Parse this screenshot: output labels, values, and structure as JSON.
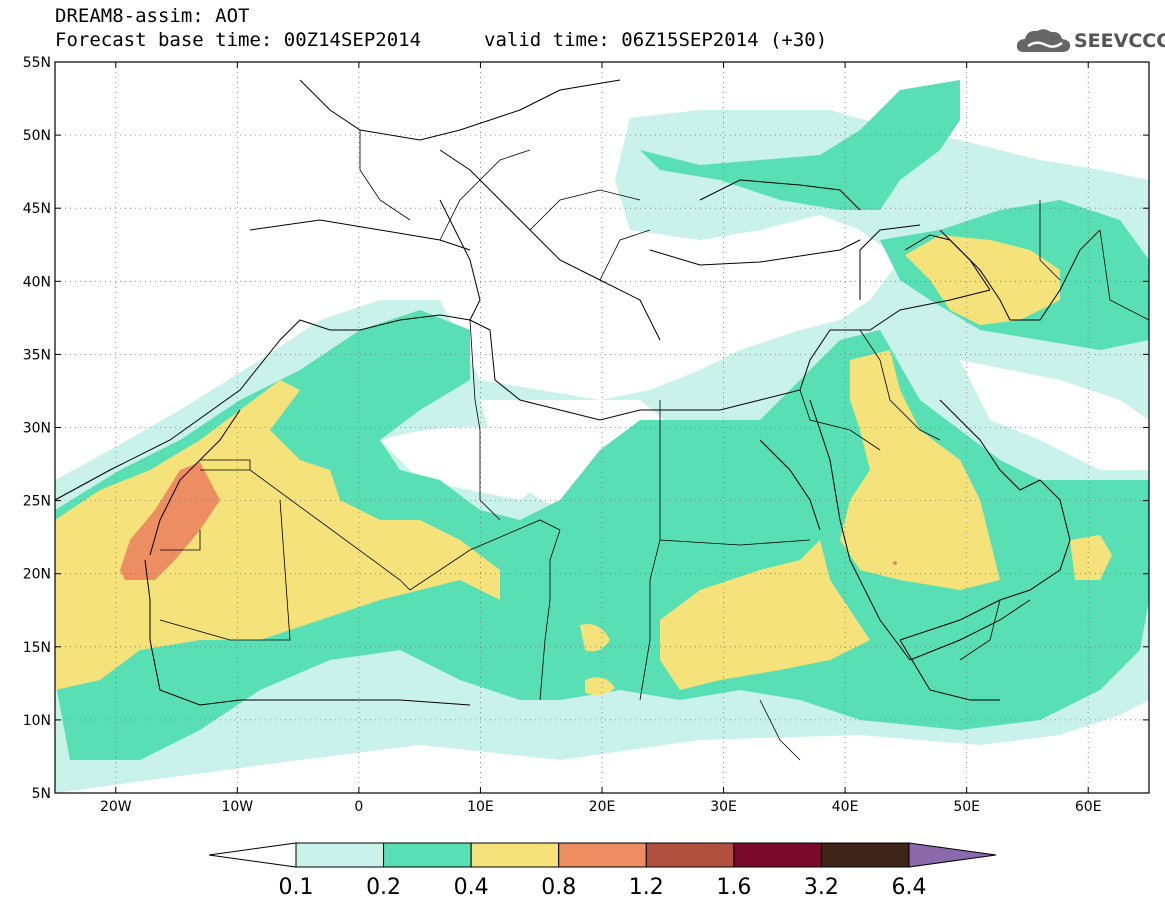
{
  "title": {
    "line1": "DREAM8-assim: AOT",
    "line2": "Forecast base time: 00Z14SEP2014",
    "valid": "valid time: 06Z15SEP2014 (+30)"
  },
  "logo": {
    "text": "SEEVCCC",
    "icon": "cloud-icon"
  },
  "map": {
    "lon_range": [
      -25,
      65
    ],
    "lat_range": [
      5,
      55
    ],
    "lon_ticks": [
      {
        "value": -20,
        "label": "20W"
      },
      {
        "value": -10,
        "label": "10W"
      },
      {
        "value": 0,
        "label": "0"
      },
      {
        "value": 10,
        "label": "10E"
      },
      {
        "value": 20,
        "label": "20E"
      },
      {
        "value": 30,
        "label": "30E"
      },
      {
        "value": 40,
        "label": "40E"
      },
      {
        "value": 50,
        "label": "50E"
      },
      {
        "value": 60,
        "label": "60E"
      }
    ],
    "lat_ticks": [
      {
        "value": 55,
        "label": "55N"
      },
      {
        "value": 50,
        "label": "50N"
      },
      {
        "value": 45,
        "label": "45N"
      },
      {
        "value": 40,
        "label": "40N"
      },
      {
        "value": 35,
        "label": "35N"
      },
      {
        "value": 30,
        "label": "30N"
      },
      {
        "value": 25,
        "label": "25N"
      },
      {
        "value": 20,
        "label": "20N"
      },
      {
        "value": 15,
        "label": "15N"
      },
      {
        "value": 10,
        "label": "10N"
      },
      {
        "value": 5,
        "label": "5N"
      }
    ],
    "grid": "dotted"
  },
  "colorbar": {
    "levels": [
      "0.1",
      "0.2",
      "0.4",
      "0.8",
      "1.2",
      "1.6",
      "3.2",
      "6.4"
    ],
    "colors": [
      "#ffffff",
      "#c8f2ea",
      "#58e0b4",
      "#f5e27a",
      "#ec8d62",
      "#b25040",
      "#7a0a2c",
      "#3c2418",
      "#8a6aaa"
    ]
  }
}
